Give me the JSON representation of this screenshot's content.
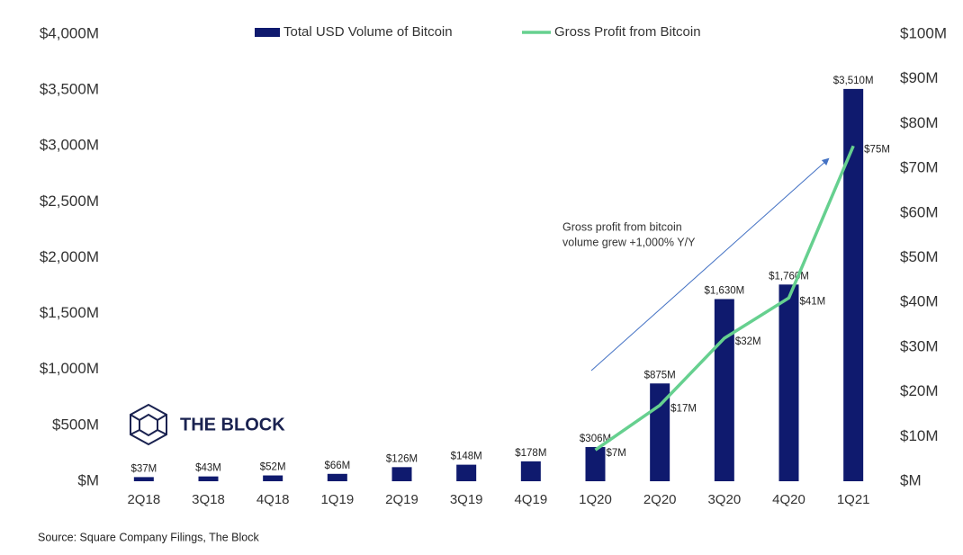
{
  "chart_data": {
    "type": "bar+line",
    "categories": [
      "2Q18",
      "3Q18",
      "4Q18",
      "1Q19",
      "2Q19",
      "3Q19",
      "4Q19",
      "1Q20",
      "2Q20",
      "3Q20",
      "4Q20",
      "1Q21"
    ],
    "series": [
      {
        "name": "Total USD Volume of Bitcoin",
        "type": "bar",
        "color": "#0f1a6e",
        "values": [
          37,
          43,
          52,
          66,
          126,
          148,
          178,
          306,
          875,
          1630,
          1760,
          3510
        ],
        "value_labels": [
          "$37M",
          "$43M",
          "$52M",
          "$66M",
          "$126M",
          "$148M",
          "$178M",
          "$306M",
          "$875M",
          "$1,630M",
          "$1,760M",
          "$3,510M"
        ]
      },
      {
        "name": "Gross Profit from Bitcoin",
        "type": "line",
        "axis": "y2",
        "color": "#66d08f",
        "values": [
          null,
          null,
          null,
          null,
          null,
          null,
          null,
          7,
          17,
          32,
          41,
          75
        ],
        "value_labels": [
          null,
          null,
          null,
          null,
          null,
          null,
          null,
          "$7M",
          "$17M",
          "$32M",
          "$41M",
          "$75M"
        ]
      }
    ],
    "ylim": [
      0,
      4000
    ],
    "yticks": [
      {
        "value": 0,
        "label": "$M"
      },
      {
        "value": 500,
        "label": "$500M"
      },
      {
        "value": 1000,
        "label": "$1,000M"
      },
      {
        "value": 1500,
        "label": "$1,500M"
      },
      {
        "value": 2000,
        "label": "$2,000M"
      },
      {
        "value": 2500,
        "label": "$2,500M"
      },
      {
        "value": 3000,
        "label": "$3,000M"
      },
      {
        "value": 3500,
        "label": "$3,500M"
      },
      {
        "value": 4000,
        "label": "$4,000M"
      }
    ],
    "y2lim": [
      0,
      100
    ],
    "y2ticks": [
      {
        "value": 0,
        "label": "$M"
      },
      {
        "value": 10,
        "label": "$10M"
      },
      {
        "value": 20,
        "label": "$20M"
      },
      {
        "value": 30,
        "label": "$30M"
      },
      {
        "value": 40,
        "label": "$40M"
      },
      {
        "value": 50,
        "label": "$50M"
      },
      {
        "value": 60,
        "label": "$60M"
      },
      {
        "value": 70,
        "label": "$70M"
      },
      {
        "value": 80,
        "label": "$80M"
      },
      {
        "value": 90,
        "label": "$90M"
      },
      {
        "value": 100,
        "label": "$100M"
      }
    ],
    "annotation": [
      "Gross profit from bitcoin",
      "volume grew +1,000% Y/Y"
    ],
    "logo": "THE BLOCK",
    "source": "Source: Square Company Filings, The Block",
    "grid": false
  }
}
